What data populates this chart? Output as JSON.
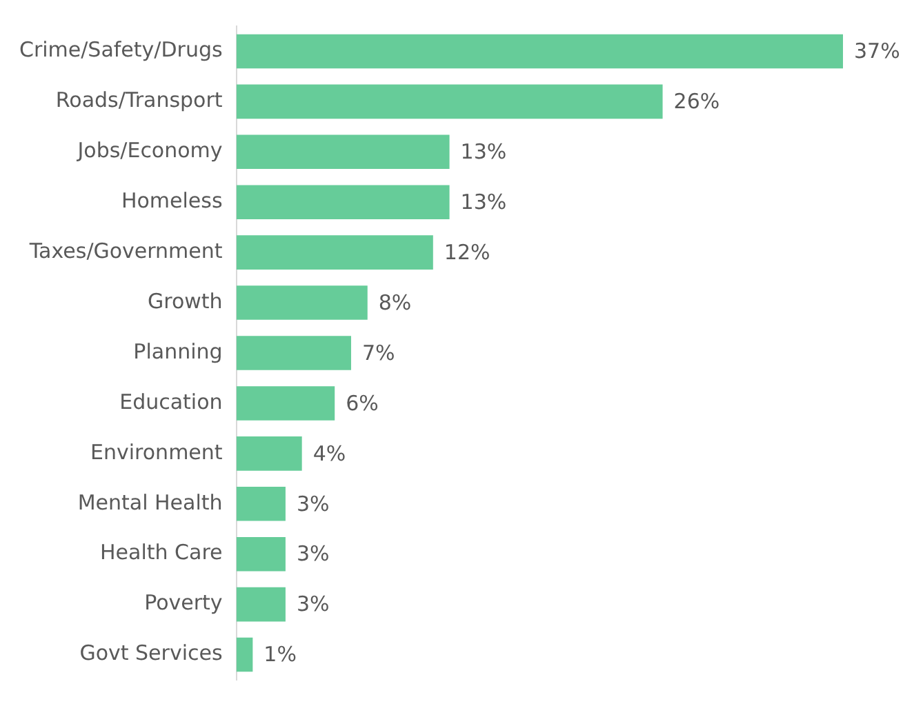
{
  "chart_data": {
    "type": "bar",
    "orientation": "horizontal",
    "categories": [
      "Crime/Safety/Drugs",
      "Roads/Transport",
      "Jobs/Economy",
      "Homeless",
      "Taxes/Government",
      "Growth",
      "Planning",
      "Education",
      "Environment",
      "Mental Health",
      "Health Care",
      "Poverty",
      "Govt Services"
    ],
    "values": [
      37,
      26,
      13,
      13,
      12,
      8,
      7,
      6,
      4,
      3,
      3,
      3,
      1
    ],
    "value_labels": [
      "37%",
      "26%",
      "13%",
      "13%",
      "12%",
      "8%",
      "7%",
      "6%",
      "4%",
      "3%",
      "3%",
      "3%",
      "1%"
    ],
    "color": "#66cc99",
    "legend": false
  }
}
